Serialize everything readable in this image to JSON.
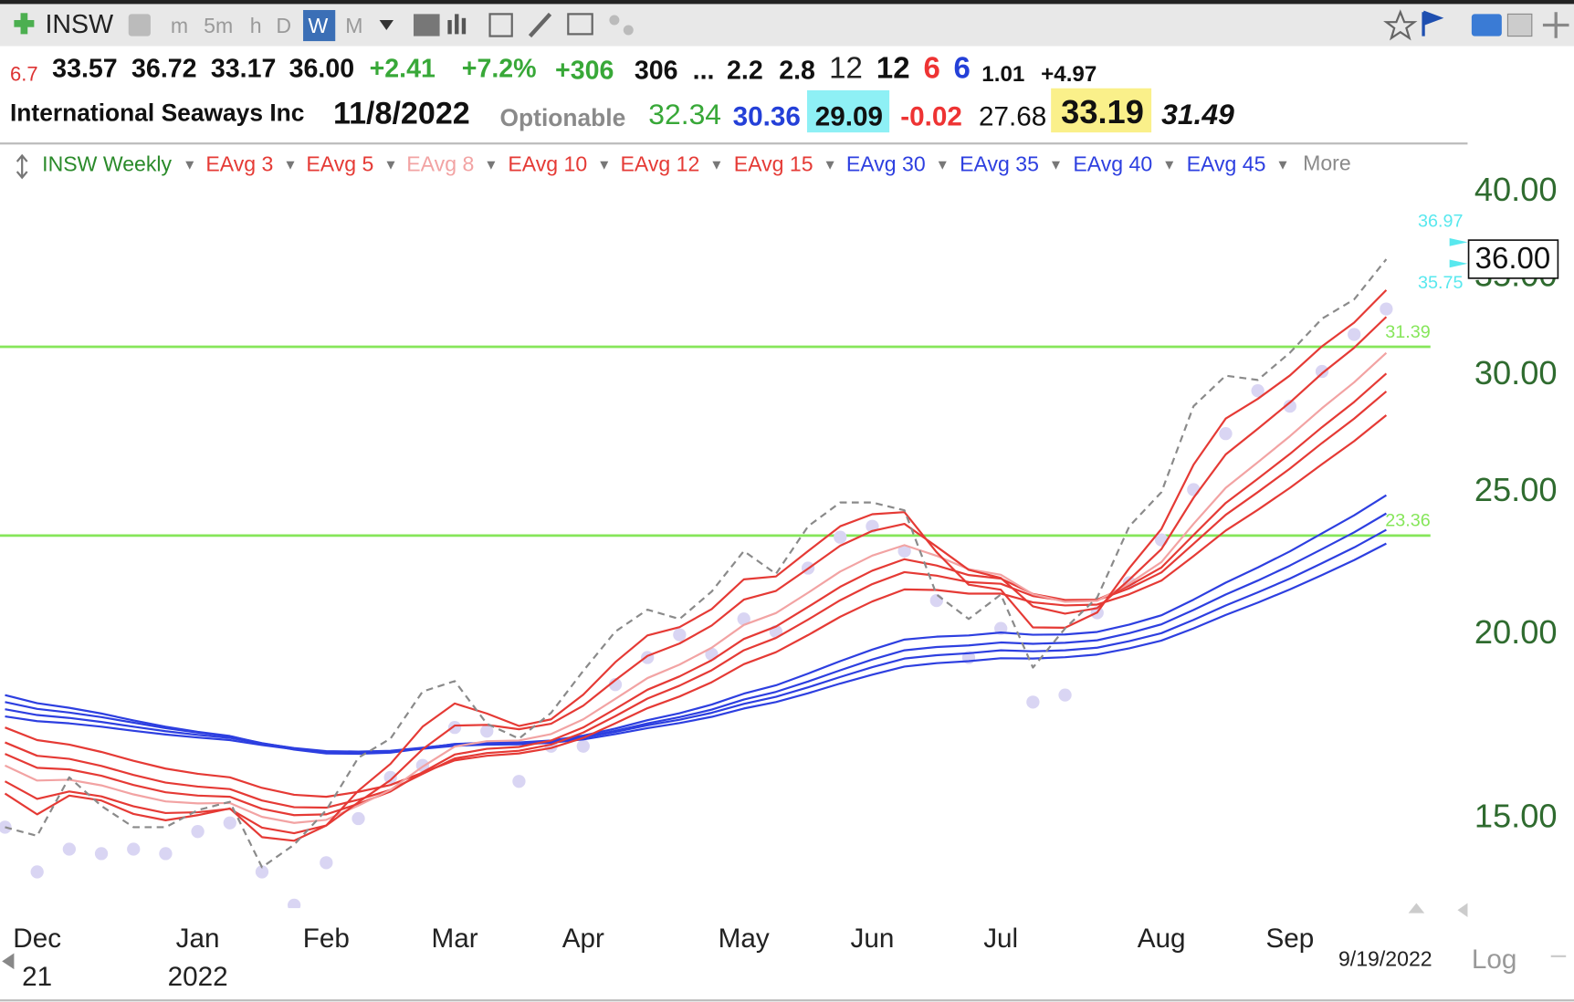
{
  "toolbar": {
    "symbol": "INSW",
    "timeframes": [
      "m",
      "5m",
      "h",
      "D",
      "W",
      "M"
    ]
  },
  "quote": {
    "row1": [
      "6.7",
      "33.57",
      "36.72",
      "33.17",
      "36.00",
      "+2.41",
      "+7.2%",
      "+306",
      "306",
      "...",
      "2.2",
      "2.8",
      "12",
      "12",
      "6",
      "6",
      "1.01",
      "+4.97"
    ],
    "row2": [
      "International Seaways Inc",
      "11/8/2022",
      "Optionable",
      "32.34",
      "30.36",
      "29.09",
      "-0.02",
      "27.68",
      "33.19",
      "31.49"
    ]
  },
  "chart_data": {
    "type": "line",
    "legend_title": "INSW Weekly",
    "more": "More",
    "log_scale": true,
    "categories": [
      null,
      "Dec",
      null,
      null,
      null,
      null,
      "Jan",
      null,
      null,
      null,
      "Feb",
      null,
      null,
      null,
      "Mar",
      null,
      null,
      null,
      "Apr",
      null,
      null,
      null,
      null,
      "May",
      null,
      null,
      null,
      "Jun",
      null,
      null,
      null,
      "Jul",
      null,
      null,
      null,
      null,
      "Aug",
      null,
      null,
      null,
      "Sep",
      null,
      null,
      null
    ],
    "year_labels": [
      null,
      "21",
      null,
      null,
      null,
      null,
      "2022",
      null,
      null,
      null,
      null,
      null,
      null,
      null,
      null,
      null,
      null,
      null,
      null,
      null,
      null,
      null,
      null,
      null,
      null,
      null,
      null,
      null,
      null,
      null,
      null,
      null,
      null,
      null,
      null,
      null,
      null,
      null,
      null,
      null,
      null,
      null,
      null,
      null
    ],
    "price": {
      "color": "#8a8a8a",
      "values": [
        14.8,
        14.6,
        16.0,
        15.3,
        14.8,
        14.8,
        15.2,
        15.4,
        13.9,
        14.4,
        15.2,
        16.5,
        17.0,
        18.3,
        18.6,
        17.4,
        17.0,
        17.7,
        18.9,
        20.1,
        20.8,
        20.5,
        21.4,
        22.8,
        22.0,
        23.7,
        24.6,
        24.6,
        24.3,
        21.3,
        20.5,
        21.3,
        19.0,
        20.2,
        21.2,
        23.7,
        25.0,
        28.6,
        30.0,
        29.8,
        31.1,
        32.8,
        33.8,
        36.0
      ]
    },
    "dots": {
      "color": "#d9d5f3",
      "values": [
        14.8,
        13.8,
        14.3,
        14.2,
        14.3,
        14.2,
        14.7,
        14.9,
        13.8,
        13.1,
        14.0,
        15.0,
        16.0,
        16.3,
        17.3,
        17.2,
        15.9,
        16.8,
        16.8,
        18.5,
        19.3,
        20.0,
        19.4,
        20.5,
        20.1,
        22.2,
        23.3,
        23.7,
        22.8,
        21.1,
        19.3,
        20.2,
        18.0,
        18.2,
        20.7,
        21.7,
        23.2,
        25.1,
        27.4,
        29.3,
        28.6,
        30.2,
        32.0,
        33.3
      ]
    },
    "series": [
      {
        "name": "EAvg 3",
        "color": "#e53a35",
        "values": [
          15.6,
          15.1,
          15.55,
          15.43,
          15.11,
          14.96,
          15.08,
          15.24,
          14.57,
          14.49,
          14.84,
          15.67,
          16.34,
          17.32,
          17.96,
          17.68,
          17.34,
          17.52,
          18.21,
          19.16,
          19.98,
          20.24,
          20.82,
          21.81,
          21.91,
          22.8,
          23.7,
          24.15,
          24.23,
          22.76,
          21.63,
          21.46,
          20.23,
          20.22,
          20.71,
          22.2,
          23.6,
          26.1,
          28.05,
          28.93,
          30.01,
          31.41,
          32.6,
          34.3
        ]
      },
      {
        "name": "EAvg 5",
        "color": "#e53a35",
        "values": [
          15.9,
          15.47,
          15.65,
          15.53,
          15.29,
          15.13,
          15.15,
          15.23,
          14.79,
          14.66,
          14.84,
          15.39,
          15.93,
          16.72,
          17.35,
          17.37,
          17.25,
          17.4,
          17.9,
          18.63,
          19.35,
          19.73,
          20.29,
          21.13,
          21.42,
          22.18,
          22.99,
          23.53,
          23.79,
          22.96,
          22.14,
          21.86,
          20.91,
          20.67,
          20.85,
          21.8,
          22.87,
          24.78,
          26.52,
          27.61,
          28.77,
          30.11,
          31.34,
          32.89
        ]
      },
      {
        "name": "EAvg 8",
        "color": "#f2a3a3",
        "values": [
          16.3,
          15.92,
          15.94,
          15.8,
          15.58,
          15.41,
          15.36,
          15.37,
          15.04,
          14.9,
          14.97,
          15.31,
          15.69,
          16.27,
          16.79,
          16.93,
          16.95,
          17.12,
          17.52,
          18.09,
          18.69,
          19.09,
          19.6,
          20.31,
          20.69,
          21.36,
          22.08,
          22.64,
          23.01,
          22.63,
          22.16,
          21.97,
          21.31,
          21.06,
          21.09,
          21.67,
          22.41,
          23.79,
          25.17,
          26.2,
          27.29,
          28.51,
          29.69,
          31.09
        ]
      },
      {
        "name": "EAvg 10",
        "color": "#e53a35",
        "values": [
          16.6,
          16.24,
          16.2,
          16.04,
          15.81,
          15.63,
          15.55,
          15.52,
          15.23,
          15.08,
          15.1,
          15.35,
          15.65,
          16.13,
          16.58,
          16.73,
          16.78,
          16.95,
          17.3,
          17.81,
          18.35,
          18.74,
          19.22,
          19.87,
          20.26,
          20.89,
          21.56,
          22.11,
          22.51,
          22.29,
          21.96,
          21.84,
          21.32,
          21.12,
          21.13,
          21.6,
          22.22,
          23.38,
          24.58,
          25.53,
          26.54,
          27.68,
          28.79,
          30.1
        ]
      },
      {
        "name": "EAvg 12",
        "color": "#e53a35",
        "values": [
          16.9,
          16.55,
          16.47,
          16.29,
          16.06,
          15.87,
          15.77,
          15.71,
          15.43,
          15.27,
          15.26,
          15.45,
          15.69,
          16.09,
          16.48,
          16.62,
          16.68,
          16.84,
          17.16,
          17.61,
          18.1,
          18.47,
          18.92,
          19.52,
          19.9,
          20.48,
          21.11,
          21.65,
          22.06,
          21.94,
          21.72,
          21.66,
          21.25,
          21.09,
          21.11,
          21.51,
          22.05,
          23.06,
          24.13,
          25.0,
          25.94,
          27.0,
          28.05,
          29.27
        ]
      },
      {
        "name": "EAvg 15",
        "color": "#e53a35",
        "values": [
          17.3,
          16.96,
          16.84,
          16.65,
          16.42,
          16.22,
          16.09,
          16.0,
          15.74,
          15.57,
          15.52,
          15.64,
          15.81,
          16.12,
          16.43,
          16.55,
          16.61,
          16.75,
          17.02,
          17.41,
          17.83,
          18.16,
          18.57,
          19.1,
          19.46,
          19.99,
          20.57,
          21.07,
          21.47,
          21.45,
          21.33,
          21.33,
          21.04,
          20.94,
          20.97,
          21.31,
          21.77,
          22.62,
          23.54,
          24.32,
          25.17,
          26.12,
          27.08,
          28.2
        ]
      },
      {
        "name": "EAvg 30",
        "color": "#2d3fe0",
        "values": [
          18.2,
          17.97,
          17.84,
          17.68,
          17.49,
          17.32,
          17.18,
          17.07,
          16.87,
          16.71,
          16.61,
          16.6,
          16.63,
          16.74,
          16.86,
          16.89,
          16.9,
          16.95,
          17.08,
          17.27,
          17.5,
          17.69,
          17.93,
          18.24,
          18.48,
          18.82,
          19.19,
          19.54,
          19.85,
          19.94,
          19.98,
          20.07,
          20.0,
          20.01,
          20.09,
          20.32,
          20.62,
          21.13,
          21.7,
          22.22,
          22.79,
          23.44,
          24.11,
          24.88
        ]
      },
      {
        "name": "EAvg 35",
        "color": "#2d3fe0",
        "values": [
          18.0,
          17.81,
          17.71,
          17.58,
          17.43,
          17.28,
          17.16,
          17.06,
          16.88,
          16.74,
          16.65,
          16.64,
          16.66,
          16.75,
          16.85,
          16.88,
          16.89,
          16.93,
          17.04,
          17.21,
          17.41,
          17.58,
          17.79,
          18.07,
          18.29,
          18.59,
          18.92,
          19.24,
          19.52,
          19.62,
          19.67,
          19.76,
          19.72,
          19.75,
          19.83,
          20.05,
          20.33,
          20.79,
          21.3,
          21.77,
          22.29,
          22.87,
          23.48,
          24.18
        ]
      },
      {
        "name": "EAvg 40",
        "color": "#2d3fe0",
        "values": [
          17.8,
          17.64,
          17.56,
          17.45,
          17.32,
          17.2,
          17.1,
          17.02,
          16.87,
          16.75,
          16.67,
          16.66,
          16.68,
          16.76,
          16.85,
          16.88,
          16.89,
          16.93,
          17.03,
          17.18,
          17.36,
          17.51,
          17.7,
          17.95,
          18.15,
          18.42,
          18.72,
          19.01,
          19.27,
          19.37,
          19.43,
          19.52,
          19.49,
          19.52,
          19.6,
          19.8,
          20.05,
          20.47,
          20.94,
          21.37,
          21.84,
          22.37,
          22.93,
          23.57
        ]
      },
      {
        "name": "EAvg 45",
        "color": "#2d3fe0",
        "values": [
          17.6,
          17.47,
          17.41,
          17.32,
          17.21,
          17.11,
          17.03,
          16.96,
          16.83,
          16.72,
          16.65,
          16.64,
          16.66,
          16.73,
          16.81,
          16.84,
          16.85,
          16.89,
          16.98,
          17.12,
          17.28,
          17.42,
          17.59,
          17.82,
          18.0,
          18.25,
          18.53,
          18.79,
          19.03,
          19.13,
          19.19,
          19.28,
          19.27,
          19.31,
          19.39,
          19.58,
          19.82,
          20.2,
          20.63,
          21.03,
          21.47,
          21.96,
          22.48,
          23.07
        ]
      }
    ],
    "ylim": [
      13.04,
      41.03
    ],
    "yticks": [
      {
        "value": 15,
        "label": "15.00"
      },
      {
        "value": 20,
        "label": "20.00"
      },
      {
        "value": 25,
        "label": "25.00"
      },
      {
        "value": 30,
        "label": "30.00"
      },
      {
        "value": 35,
        "label": "35.00"
      },
      {
        "value": 40,
        "label": "40.00"
      }
    ],
    "hlines": [
      {
        "value": 31.39,
        "color": "#86e65a"
      },
      {
        "value": 23.36,
        "color": "#86e65a"
      }
    ],
    "price_markers": [
      36.97,
      35.75
    ],
    "last_price": {
      "value": 36,
      "label": "36.00"
    },
    "date_label": "9/19/2022",
    "scale_label": "Log"
  }
}
